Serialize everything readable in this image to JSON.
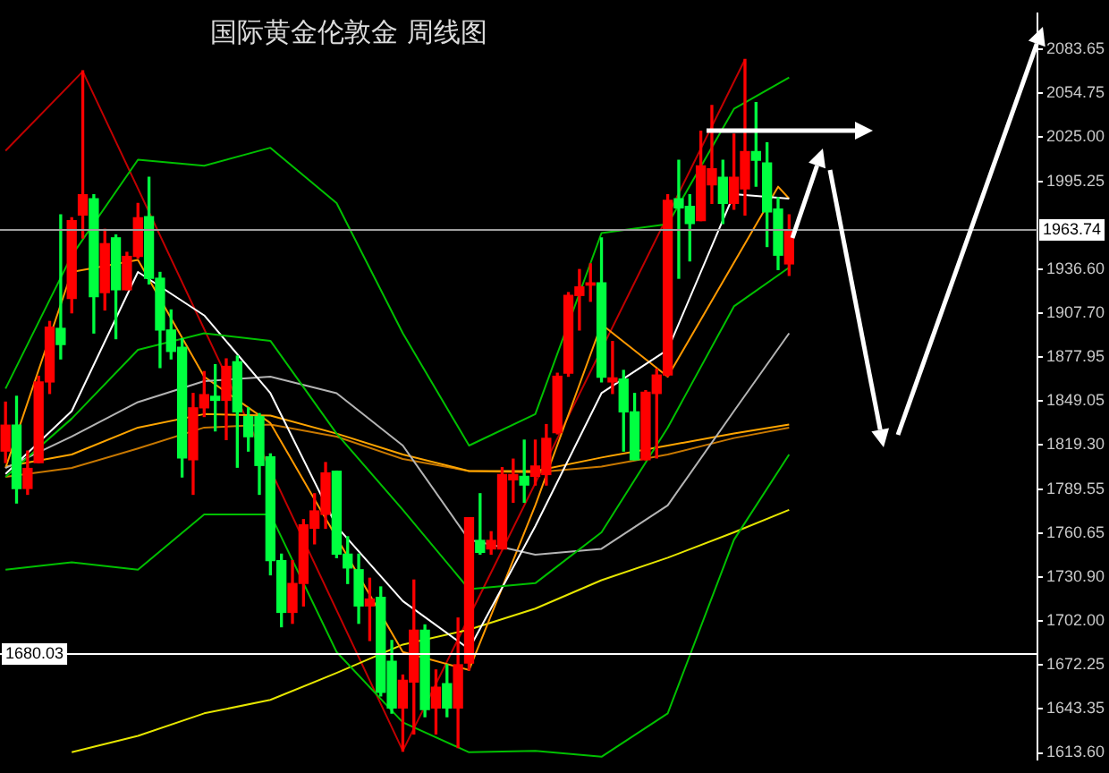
{
  "chart_data": {
    "type": "candlestick",
    "title": "国际黄金伦敦金 周线图",
    "categories": [
      null,
      null,
      null,
      null,
      null,
      null,
      null,
      null,
      null,
      null,
      null,
      null,
      null,
      null,
      null,
      null,
      null,
      null,
      null,
      null,
      null,
      null,
      null,
      null,
      null,
      null,
      null,
      null,
      null,
      null,
      null,
      null,
      null,
      null,
      null,
      null,
      null,
      null,
      null,
      null,
      null,
      null,
      null,
      null,
      null,
      null,
      null,
      null,
      null,
      null,
      null,
      null,
      null,
      null,
      null,
      null,
      null,
      null,
      null,
      null,
      null,
      null,
      null,
      null,
      null,
      null,
      null,
      null,
      null,
      null,
      null,
      null,
      null,
      null,
      null,
      null,
      null,
      null,
      null,
      null,
      null,
      null,
      null,
      null,
      null,
      null,
      null,
      null,
      null,
      null,
      null,
      null,
      null,
      null
    ],
    "ohlc": [
      [
        1815.3,
        1848.0,
        1807.6,
        1832.6
      ],
      [
        1832.6,
        1851.9,
        1780.6,
        1790.3
      ],
      [
        1790.3,
        1815.3,
        1786.4,
        1803.7
      ],
      [
        1807.6,
        1865.3,
        1807.6,
        1861.5
      ],
      [
        1861.5,
        1901.9,
        1853.8,
        1898.1
      ],
      [
        1897.3,
        1973.1,
        1876.9,
        1886.5
      ],
      [
        1917.3,
        1971.2,
        1907.7,
        1969.3
      ],
      [
        1973.1,
        2069.4,
        1957.7,
        1986.6
      ],
      [
        1983.9,
        1986.6,
        1894.2,
        1918.5
      ],
      [
        1921.2,
        1963.5,
        1909.6,
        1953.9
      ],
      [
        1957.8,
        1959.7,
        1890.4,
        1923.1
      ],
      [
        1923.1,
        1948.1,
        1923.1,
        1945.4
      ],
      [
        1945.4,
        1980.8,
        1944.3,
        1971.2
      ],
      [
        1972.0,
        1998.2,
        1927.0,
        1930.8
      ],
      [
        1930.8,
        1934.7,
        1871.1,
        1896.2
      ],
      [
        1896.2,
        1909.6,
        1876.9,
        1881.9
      ],
      [
        1884.6,
        1890.4,
        1798.0,
        1810.7
      ],
      [
        1809.5,
        1853.8,
        1786.4,
        1844.2
      ],
      [
        1844.2,
        1868.4,
        1838.4,
        1853.0
      ],
      [
        1851.9,
        1873.0,
        1828.8,
        1849.2
      ],
      [
        1849.2,
        1876.9,
        1823.0,
        1871.9
      ],
      [
        1875.0,
        1878.8,
        1804.5,
        1841.5
      ],
      [
        1838.4,
        1844.2,
        1815.3,
        1824.9
      ],
      [
        1838.4,
        1840.3,
        1786.4,
        1805.7
      ],
      [
        1811.4,
        1813.4,
        1732.6,
        1742.1
      ],
      [
        1742.1,
        1746.4,
        1697.9,
        1707.5
      ],
      [
        1707.5,
        1742.1,
        1700.2,
        1726.8
      ],
      [
        1726.8,
        1769.5,
        1711.8,
        1766.0
      ],
      [
        1763.7,
        1786.8,
        1753.3,
        1775.3
      ],
      [
        1773.0,
        1807.6,
        1763.7,
        1800.7
      ],
      [
        1801.9,
        1801.9,
        1744.1,
        1746.4
      ],
      [
        1746.4,
        1758.0,
        1726.8,
        1737.2
      ],
      [
        1736.0,
        1746.4,
        1700.2,
        1711.8
      ],
      [
        1711.8,
        1730.3,
        1688.7,
        1716.4
      ],
      [
        1717.5,
        1724.5,
        1651.7,
        1654.0
      ],
      [
        1674.8,
        1688.7,
        1640.2,
        1643.6
      ],
      [
        1643.6,
        1665.6,
        1614.8,
        1662.1
      ],
      [
        1660.9,
        1729.1,
        1626.3,
        1695.6
      ],
      [
        1695.6,
        1699.1,
        1637.8,
        1642.5
      ],
      [
        1643.6,
        1669.0,
        1626.3,
        1657.5
      ],
      [
        1659.8,
        1672.5,
        1637.8,
        1643.6
      ],
      [
        1643.6,
        1703.7,
        1617.1,
        1672.5
      ],
      [
        1673.7,
        1770.7,
        1669.0,
        1770.7
      ],
      [
        1755.6,
        1786.8,
        1746.4,
        1747.6
      ],
      [
        1749.9,
        1761.4,
        1746.4,
        1755.6
      ],
      [
        1749.9,
        1804.2,
        1749.9,
        1799.6
      ],
      [
        1796.1,
        1809.9,
        1781.1,
        1799.6
      ],
      [
        1798.4,
        1822.6,
        1781.1,
        1792.6
      ],
      [
        1798.4,
        1822.6,
        1792.6,
        1805.3
      ],
      [
        1799.6,
        1833.0,
        1792.6,
        1823.8
      ],
      [
        1827.6,
        1867.3,
        1826.8,
        1865.3
      ],
      [
        1867.3,
        1921.2,
        1865.3,
        1919.3
      ],
      [
        1919.3,
        1936.6,
        1896.2,
        1925.0
      ],
      [
        1926.2,
        1940.4,
        1915.4,
        1927.7
      ],
      [
        1927.7,
        1957.8,
        1861.5,
        1864.6
      ],
      [
        1861.5,
        1888.5,
        1853.8,
        1864.2
      ],
      [
        1863.4,
        1869.2,
        1815.3,
        1841.5
      ],
      [
        1841.5,
        1853.8,
        1809.5,
        1809.5
      ],
      [
        1809.5,
        1855.7,
        1809.5,
        1854.6
      ],
      [
        1853.8,
        1870.0,
        1810.7,
        1866.1
      ],
      [
        1866.1,
        1986.6,
        1865.3,
        1982.8
      ],
      [
        1983.9,
        2009.7,
        1930.8,
        1977.8
      ],
      [
        1978.9,
        1986.6,
        1942.4,
        1967.4
      ],
      [
        1969.3,
        2029.0,
        1969.3,
        2005.9
      ],
      [
        1993.2,
        2046.3,
        1980.8,
        2004.0
      ],
      [
        1998.2,
        2009.7,
        1967.4,
        1980.8
      ],
      [
        1980.8,
        2027.1,
        1977.0,
        1998.2
      ],
      [
        1990.5,
        2077.1,
        1973.1,
        2015.5
      ],
      [
        2015.5,
        2048.2,
        1992.4,
        2009.7
      ],
      [
        2007.8,
        2021.3,
        1952.0,
        1975.1
      ],
      [
        1977.0,
        1984.7,
        1936.6,
        1946.2
      ],
      [
        1940.4,
        1973.1,
        1932.7,
        1962.4
      ],
      null,
      null,
      null,
      null,
      null,
      null,
      null,
      null,
      null,
      null,
      null,
      null,
      null,
      null,
      null,
      null,
      null,
      null,
      null,
      null,
      null,
      null
    ],
    "colors": [
      "#ff0000",
      "#00ff40",
      "#ff0000",
      "#ff0000",
      "#ff0000",
      "#00ff40",
      "#ff0000",
      "#ff0000",
      "#00ff40",
      "#ff0000",
      "#00ff40",
      "#ff0000",
      "#ff0000",
      "#00ff40",
      "#00ff40",
      "#00ff40",
      "#00ff40",
      "#ff0000",
      "#ff0000",
      "#00ff40",
      "#ff0000",
      "#00ff40",
      "#00ff40",
      "#00ff40",
      "#00ff40",
      "#00ff40",
      "#ff0000",
      "#ff0000",
      "#ff0000",
      "#ff0000",
      "#00ff40",
      "#00ff40",
      "#00ff40",
      "#ff0000",
      "#00ff40",
      "#00ff40",
      "#ff0000",
      "#ff0000",
      "#00ff40",
      "#ff0000",
      "#00ff40",
      "#ff0000",
      "#ff0000",
      "#00ff40",
      "#ff0000",
      "#ff0000",
      "#ff0000",
      "#00ff40",
      "#ff0000",
      "#ff0000",
      "#ff0000",
      "#ff0000",
      "#ff0000",
      "#ff0000",
      "#00ff40",
      "#ff0000",
      "#00ff40",
      "#00ff40",
      "#ff0000",
      "#ff0000",
      "#ff0000",
      "#00ff40",
      "#00ff40",
      "#ff0000",
      "#ff0000",
      "#00ff40",
      "#ff0000",
      "#ff0000",
      "#00ff40",
      "#00ff40",
      "#00ff40",
      "#ff0000",
      null,
      null,
      null,
      null,
      null,
      null,
      null,
      null,
      null,
      null,
      null,
      null,
      null,
      null,
      null,
      null,
      null,
      null,
      null,
      null,
      null,
      null
    ],
    "series": [
      {
        "type": "line",
        "color": "#00c000",
        "values": [
          1857,
          null,
          null,
          null,
          null,
          null,
          1946,
          null,
          null,
          null,
          null,
          null,
          2010,
          null,
          null,
          null,
          null,
          null,
          2006,
          null,
          null,
          null,
          null,
          null,
          2018,
          null,
          null,
          null,
          null,
          null,
          1981,
          null,
          null,
          null,
          null,
          null,
          1894,
          null,
          null,
          null,
          null,
          null,
          1819,
          null,
          null,
          null,
          null,
          null,
          1840,
          null,
          null,
          null,
          null,
          null,
          1961,
          null,
          null,
          null,
          null,
          null,
          1967,
          null,
          null,
          null,
          null,
          null,
          2044,
          null,
          null,
          null,
          null,
          2065,
          null,
          null,
          null,
          null,
          null,
          null,
          null,
          null,
          null,
          null,
          null,
          null,
          null,
          null,
          null,
          null,
          null,
          null,
          null,
          null,
          null,
          null
        ]
      },
      {
        "type": "line",
        "color": "#00c000",
        "values": [
          1798,
          null,
          null,
          null,
          null,
          null,
          1837,
          null,
          null,
          null,
          null,
          null,
          1883,
          null,
          null,
          null,
          null,
          null,
          1894,
          null,
          null,
          null,
          null,
          null,
          1889,
          null,
          null,
          null,
          null,
          null,
          1827,
          null,
          null,
          null,
          null,
          null,
          1776,
          null,
          null,
          null,
          null,
          null,
          1723,
          null,
          null,
          null,
          null,
          null,
          1727,
          null,
          null,
          null,
          null,
          null,
          1761,
          null,
          null,
          null,
          null,
          null,
          1831,
          null,
          null,
          null,
          null,
          null,
          1912,
          null,
          null,
          null,
          null,
          1938,
          null,
          null,
          null,
          null,
          null,
          null,
          null,
          null,
          null,
          null,
          null,
          null,
          null,
          null,
          null,
          null,
          null,
          null,
          null,
          null,
          null,
          null
        ]
      },
      {
        "type": "line",
        "color": "#00c000",
        "values": [
          1736,
          null,
          null,
          null,
          null,
          null,
          1741,
          null,
          null,
          null,
          null,
          null,
          1736,
          null,
          null,
          null,
          null,
          null,
          1773,
          null,
          null,
          null,
          null,
          null,
          1773,
          null,
          null,
          null,
          null,
          null,
          1681,
          null,
          null,
          null,
          null,
          null,
          1634,
          null,
          null,
          null,
          null,
          null,
          1614,
          null,
          null,
          null,
          null,
          null,
          1615,
          null,
          null,
          null,
          null,
          null,
          1611,
          null,
          null,
          null,
          null,
          null,
          1640,
          null,
          null,
          null,
          null,
          null,
          1756,
          null,
          null,
          null,
          null,
          1813,
          null,
          null,
          null,
          null,
          null,
          null,
          null,
          null,
          null,
          null,
          null,
          null,
          null,
          null,
          null,
          null,
          null,
          null,
          null,
          null,
          null,
          null
        ]
      },
      {
        "type": "line",
        "color": "#ffffff",
        "values": [
          1800,
          null,
          null,
          null,
          null,
          null,
          1842,
          null,
          null,
          null,
          null,
          null,
          1935,
          null,
          null,
          null,
          null,
          null,
          1906,
          null,
          null,
          null,
          null,
          null,
          1854,
          null,
          null,
          null,
          null,
          null,
          1765,
          null,
          null,
          null,
          null,
          null,
          1715,
          null,
          null,
          null,
          null,
          null,
          1683,
          null,
          null,
          null,
          null,
          null,
          1765,
          null,
          null,
          null,
          null,
          null,
          1854,
          null,
          null,
          null,
          null,
          null,
          1883,
          null,
          null,
          null,
          null,
          null,
          1987,
          null,
          null,
          null,
          null,
          1984,
          null,
          null,
          null,
          null,
          null,
          null,
          null,
          null,
          null,
          null,
          null,
          null,
          null,
          null,
          null,
          null,
          null,
          null,
          null,
          null,
          null,
          null
        ]
      },
      {
        "type": "line",
        "color": "#b4b4b4",
        "values": [
          1804,
          null,
          null,
          null,
          null,
          null,
          1825,
          null,
          null,
          null,
          null,
          null,
          1848,
          null,
          null,
          null,
          null,
          null,
          1862,
          null,
          null,
          null,
          null,
          null,
          1865,
          null,
          null,
          null,
          null,
          null,
          1854,
          null,
          null,
          null,
          null,
          null,
          1819,
          null,
          null,
          null,
          null,
          null,
          1756,
          null,
          null,
          null,
          null,
          null,
          1746,
          null,
          null,
          null,
          null,
          null,
          1750,
          null,
          null,
          null,
          null,
          null,
          1779,
          null,
          null,
          null,
          null,
          null,
          1842,
          null,
          null,
          null,
          null,
          1894,
          null,
          null,
          null,
          null,
          null,
          null,
          null,
          null,
          null,
          null,
          null,
          null,
          null,
          null,
          null,
          null,
          null,
          null,
          null,
          null,
          null,
          null
        ]
      },
      {
        "type": "line",
        "color": "#ff9900",
        "values": [
          1804,
          null,
          null,
          null,
          null,
          null,
          1935,
          null,
          null,
          null,
          null,
          null,
          1943,
          null,
          null,
          null,
          null,
          null,
          1865,
          null,
          null,
          null,
          null,
          null,
          1834,
          null,
          null,
          null,
          null,
          null,
          null,
          null,
          null,
          null,
          null,
          null,
          1681,
          null,
          null,
          null,
          null,
          null,
          1669,
          null,
          null,
          null,
          null,
          null,
          1779,
          null,
          null,
          null,
          null,
          null,
          1900,
          null,
          null,
          null,
          null,
          null,
          1865,
          null,
          null,
          null,
          null,
          null,
          null,
          null,
          null,
          null,
          1992,
          1984,
          null,
          null,
          null,
          null,
          null,
          null,
          null,
          null,
          null,
          null,
          null,
          null,
          null,
          null,
          null,
          null,
          null,
          null,
          null,
          null,
          null,
          null
        ]
      },
      {
        "type": "line",
        "color": "#ffa500",
        "values": [
          1805,
          null,
          null,
          null,
          null,
          null,
          1813,
          null,
          null,
          null,
          null,
          null,
          1831,
          null,
          null,
          null,
          null,
          null,
          1840,
          null,
          null,
          null,
          null,
          null,
          1839,
          null,
          null,
          null,
          null,
          null,
          1827,
          null,
          null,
          null,
          null,
          null,
          1813,
          null,
          null,
          null,
          null,
          null,
          1802,
          null,
          null,
          null,
          null,
          null,
          1802,
          null,
          null,
          null,
          null,
          null,
          1811,
          null,
          null,
          null,
          null,
          null,
          1819,
          null,
          null,
          null,
          null,
          null,
          1827,
          null,
          null,
          null,
          null,
          1833,
          null,
          null,
          null,
          null,
          null,
          null,
          null,
          null,
          null,
          null,
          null,
          null,
          null,
          null,
          null,
          null,
          null,
          null,
          null,
          null,
          null,
          null
        ]
      },
      {
        "type": "line",
        "color": "#c87800",
        "values": [
          1798,
          null,
          null,
          null,
          null,
          null,
          1804,
          null,
          null,
          null,
          null,
          null,
          1817,
          null,
          null,
          null,
          null,
          null,
          1831,
          null,
          null,
          null,
          null,
          null,
          1833,
          null,
          null,
          null,
          null,
          null,
          1825,
          null,
          null,
          null,
          null,
          null,
          1810,
          null,
          null,
          null,
          null,
          null,
          1802,
          null,
          null,
          null,
          null,
          null,
          1801,
          null,
          null,
          null,
          null,
          null,
          1805,
          null,
          null,
          null,
          null,
          null,
          1813,
          null,
          null,
          null,
          null,
          null,
          1824,
          null,
          null,
          null,
          null,
          1831,
          null,
          null,
          null,
          null,
          null,
          null,
          null,
          null,
          null,
          null,
          null,
          null,
          null,
          null,
          null,
          null,
          null,
          null,
          null,
          null,
          null,
          null
        ]
      },
      {
        "type": "line",
        "color": "#e6e600",
        "values": [
          null,
          null,
          null,
          null,
          null,
          null,
          1614,
          null,
          null,
          null,
          null,
          null,
          1625,
          null,
          null,
          null,
          null,
          null,
          1640,
          null,
          null,
          null,
          null,
          null,
          1649,
          null,
          null,
          null,
          null,
          null,
          1667,
          null,
          null,
          null,
          null,
          null,
          1686,
          null,
          null,
          null,
          null,
          null,
          1696,
          null,
          null,
          null,
          null,
          null,
          1710,
          null,
          null,
          null,
          null,
          null,
          1729,
          null,
          null,
          null,
          null,
          null,
          1744,
          null,
          null,
          null,
          null,
          null,
          1761,
          null,
          null,
          null,
          null,
          1776,
          null,
          null,
          null,
          null,
          null,
          null,
          null,
          null,
          null,
          null,
          null,
          null,
          null,
          null,
          null,
          null,
          null,
          null,
          null,
          null,
          null,
          null
        ]
      },
      {
        "type": "line",
        "color": "#c00000",
        "values": [
          2016,
          null,
          null,
          null,
          null,
          null,
          null,
          2069,
          null,
          null,
          null,
          null,
          null,
          null,
          null,
          null,
          null,
          null,
          null,
          null,
          null,
          null,
          null,
          null,
          null,
          null,
          null,
          null,
          null,
          null,
          null,
          null,
          null,
          null,
          null,
          null,
          1615,
          null,
          null,
          null,
          null,
          null,
          null,
          null,
          null,
          null,
          null,
          null,
          null,
          null,
          null,
          null,
          null,
          null,
          null,
          null,
          null,
          null,
          null,
          null,
          null,
          null,
          null,
          null,
          null,
          null,
          null,
          2077,
          null,
          null,
          null,
          null,
          null,
          null,
          null,
          null,
          null,
          null,
          null,
          null,
          null,
          null,
          null,
          null,
          null,
          null,
          null,
          null,
          null,
          null,
          null,
          null,
          null,
          null
        ]
      }
    ],
    "ylim": [
      1609.0,
      2107.9
    ],
    "yticks": [
      {
        "value": 1613.6,
        "label": "1613.60"
      },
      {
        "value": 1643.35,
        "label": "1643.35"
      },
      {
        "value": 1672.25,
        "label": "1672.25"
      },
      {
        "value": 1702.0,
        "label": "1702.00"
      },
      {
        "value": 1730.9,
        "label": "1730.90"
      },
      {
        "value": 1760.65,
        "label": "1760.65"
      },
      {
        "value": 1789.55,
        "label": "1789.55"
      },
      {
        "value": 1819.3,
        "label": "1819.30"
      },
      {
        "value": 1849.05,
        "label": "1849.05"
      },
      {
        "value": 1877.95,
        "label": "1877.95"
      },
      {
        "value": 1907.7,
        "label": "1907.70"
      },
      {
        "value": 1936.6,
        "label": "1936.60"
      },
      {
        "value": 1995.25,
        "label": "1995.25"
      },
      {
        "value": 2025.0,
        "label": "2025.00"
      },
      {
        "value": 2054.75,
        "label": "2054.75"
      },
      {
        "value": 2083.65,
        "label": "2083.65"
      }
    ],
    "ref_lines": [
      {
        "axis": "y",
        "value": 1963.74,
        "label": "1963.74",
        "color": "#a0a0a0"
      },
      {
        "axis": "y",
        "value": 1680.03,
        "label": "1680.03",
        "color": "#ffffff"
      }
    ],
    "tick_labels": "y"
  }
}
